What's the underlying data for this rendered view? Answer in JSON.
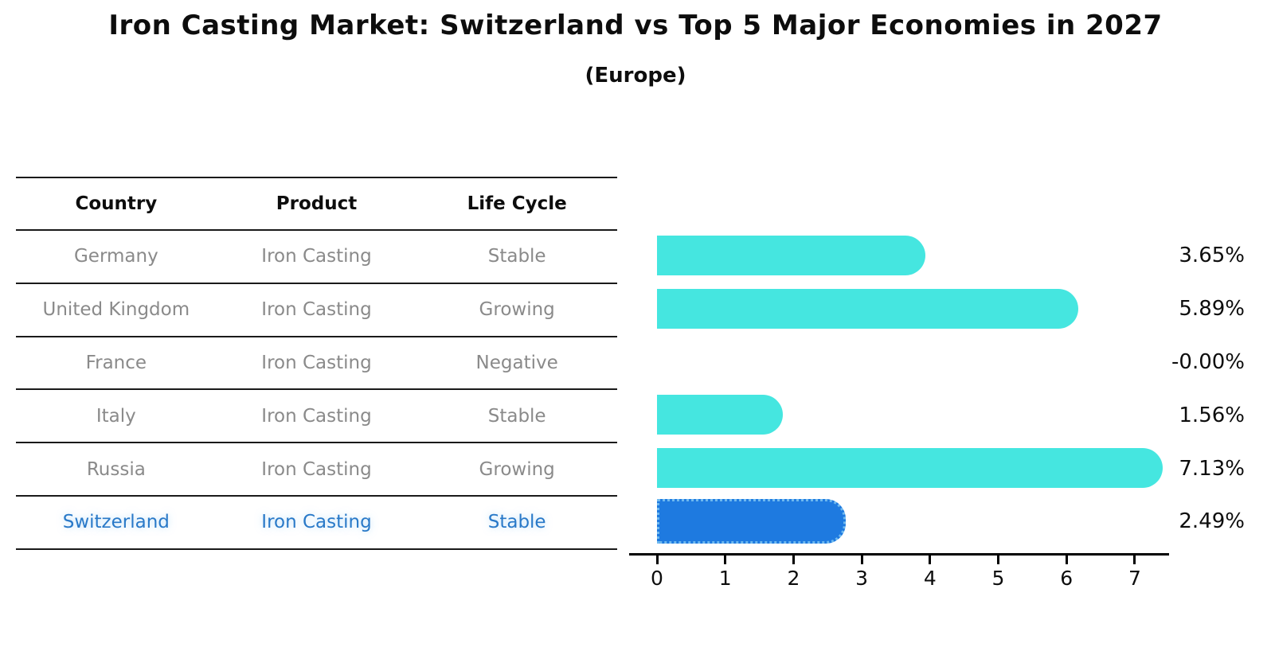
{
  "title": "Iron Casting Market: Switzerland vs Top 5 Major Economies in 2027",
  "subtitle": "(Europe)",
  "table": {
    "headers": [
      "Country",
      "Product",
      "Life Cycle"
    ],
    "rows": [
      {
        "country": "Germany",
        "product": "Iron Casting",
        "life_cycle": "Stable"
      },
      {
        "country": "United Kingdom",
        "product": "Iron Casting",
        "life_cycle": "Growing"
      },
      {
        "country": "France",
        "product": "Iron Casting",
        "life_cycle": "Negative"
      },
      {
        "country": "Italy",
        "product": "Iron Casting",
        "life_cycle": "Stable"
      },
      {
        "country": "Russia",
        "product": "Iron Casting",
        "life_cycle": "Growing"
      },
      {
        "country": "Switzerland",
        "product": "Iron Casting",
        "life_cycle": "Stable"
      }
    ],
    "highlighted_row": "Switzerland"
  },
  "chart_data": {
    "type": "bar",
    "orientation": "horizontal",
    "title": "Iron Casting Market: Switzerland vs Top 5 Major Economies in 2027 (Europe)",
    "xlabel": "",
    "ylabel": "",
    "categories": [
      "Germany",
      "United Kingdom",
      "France",
      "Italy",
      "Russia",
      "Switzerland"
    ],
    "values": [
      3.65,
      5.89,
      -0.0,
      1.56,
      7.13,
      2.49
    ],
    "value_labels": [
      "3.65%",
      "5.89%",
      "-0.00%",
      "1.56%",
      "7.13%",
      "2.49%"
    ],
    "x_ticks": [
      0,
      1,
      2,
      3,
      4,
      5,
      6,
      7
    ],
    "xlim": [
      -0.41,
      7.5
    ],
    "grid": false,
    "legend": false,
    "highlight_index": 5,
    "bar_color": "#45E6E0",
    "highlight_bar_color": "#1E7AE0",
    "highlight_border_color": "#6FB9EF"
  },
  "colors": {
    "text": "#0d0d0d",
    "muted_text": "#8a8a8a",
    "highlight_text": "#2979C8",
    "axis": "#000000"
  }
}
